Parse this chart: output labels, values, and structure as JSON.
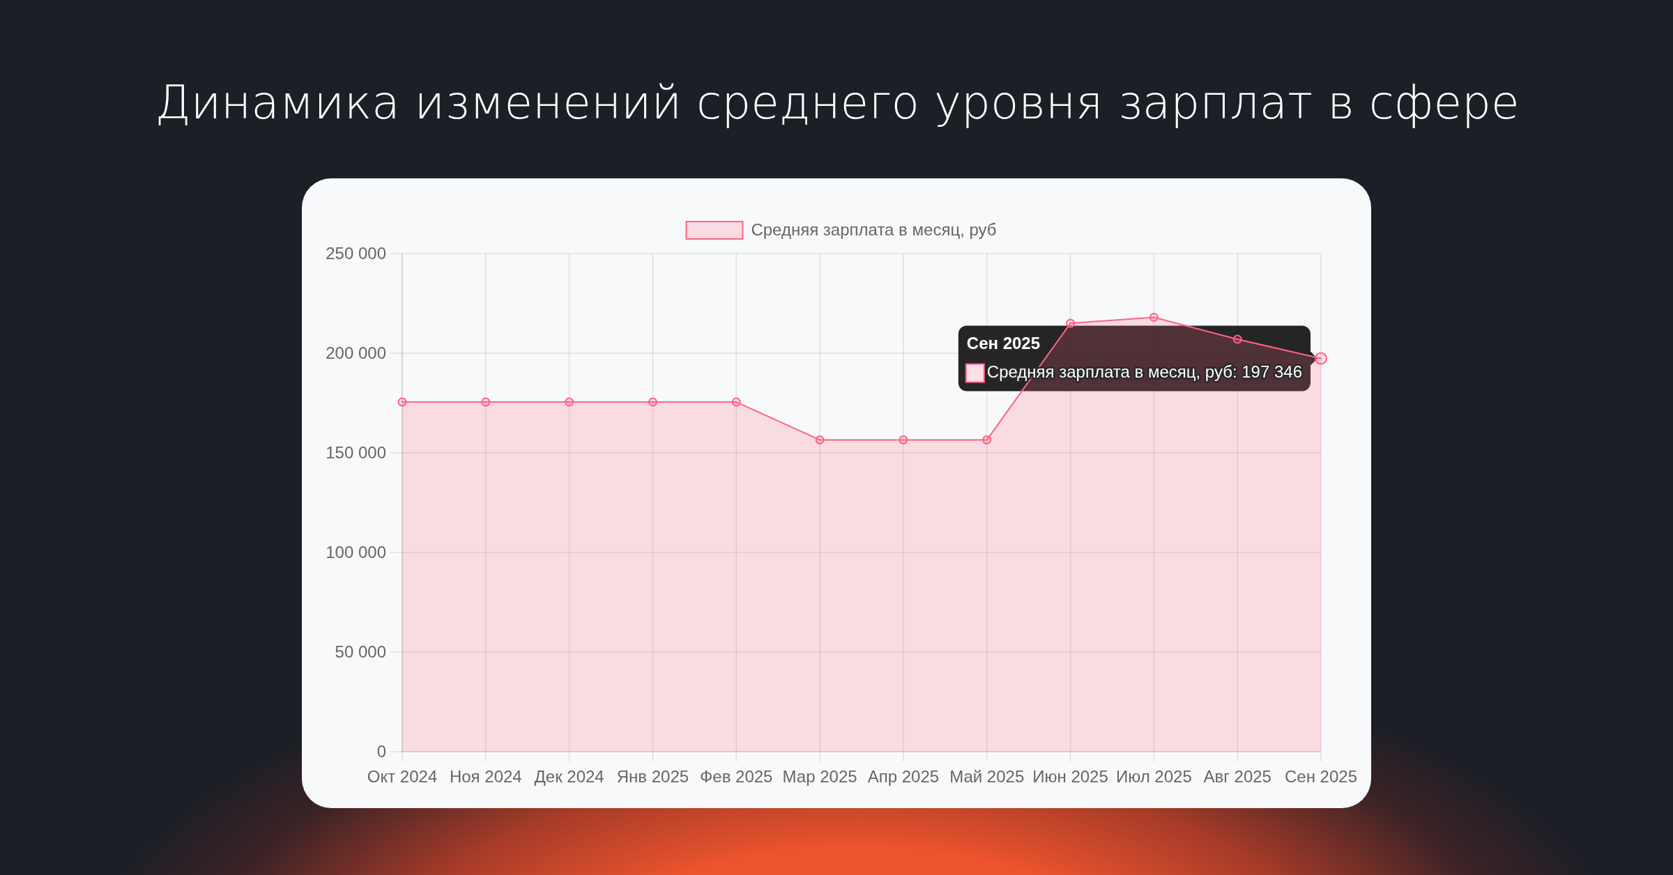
{
  "chart_data": {
    "type": "area",
    "title": "Динамика изменений среднего уровня зарплат в сфере",
    "categories": [
      "Окт 2024",
      "Ноя 2024",
      "Дек 2024",
      "Янв 2025",
      "Фев 2025",
      "Мар 2025",
      "Апр 2025",
      "Май 2025",
      "Июн 2025",
      "Июл 2025",
      "Авг 2025",
      "Сен 2025"
    ],
    "series": [
      {
        "name": "Средняя зарплата в месяц, руб",
        "color": "#ff6384",
        "values": [
          175500,
          175500,
          175500,
          175500,
          175500,
          156500,
          156500,
          156500,
          215000,
          218000,
          207000,
          197346
        ]
      }
    ],
    "ylim": [
      0,
      250000
    ],
    "yticks": [
      0,
      {
        "value": 50000,
        "label": "50 000"
      },
      {
        "value": 100000,
        "label": "100 000"
      },
      {
        "value": 150000,
        "label": "150 000"
      },
      {
        "value": 200000,
        "label": "200 000"
      },
      {
        "value": 250000,
        "label": "250 000"
      }
    ],
    "grid": true,
    "legend": "top",
    "marker": "circle",
    "annotations": [
      {
        "text": "Сен 2025\nСредняя зарплата в месяц, руб: 197 346",
        "x": "Сен 2025",
        "y": 197346
      }
    ]
  }
}
